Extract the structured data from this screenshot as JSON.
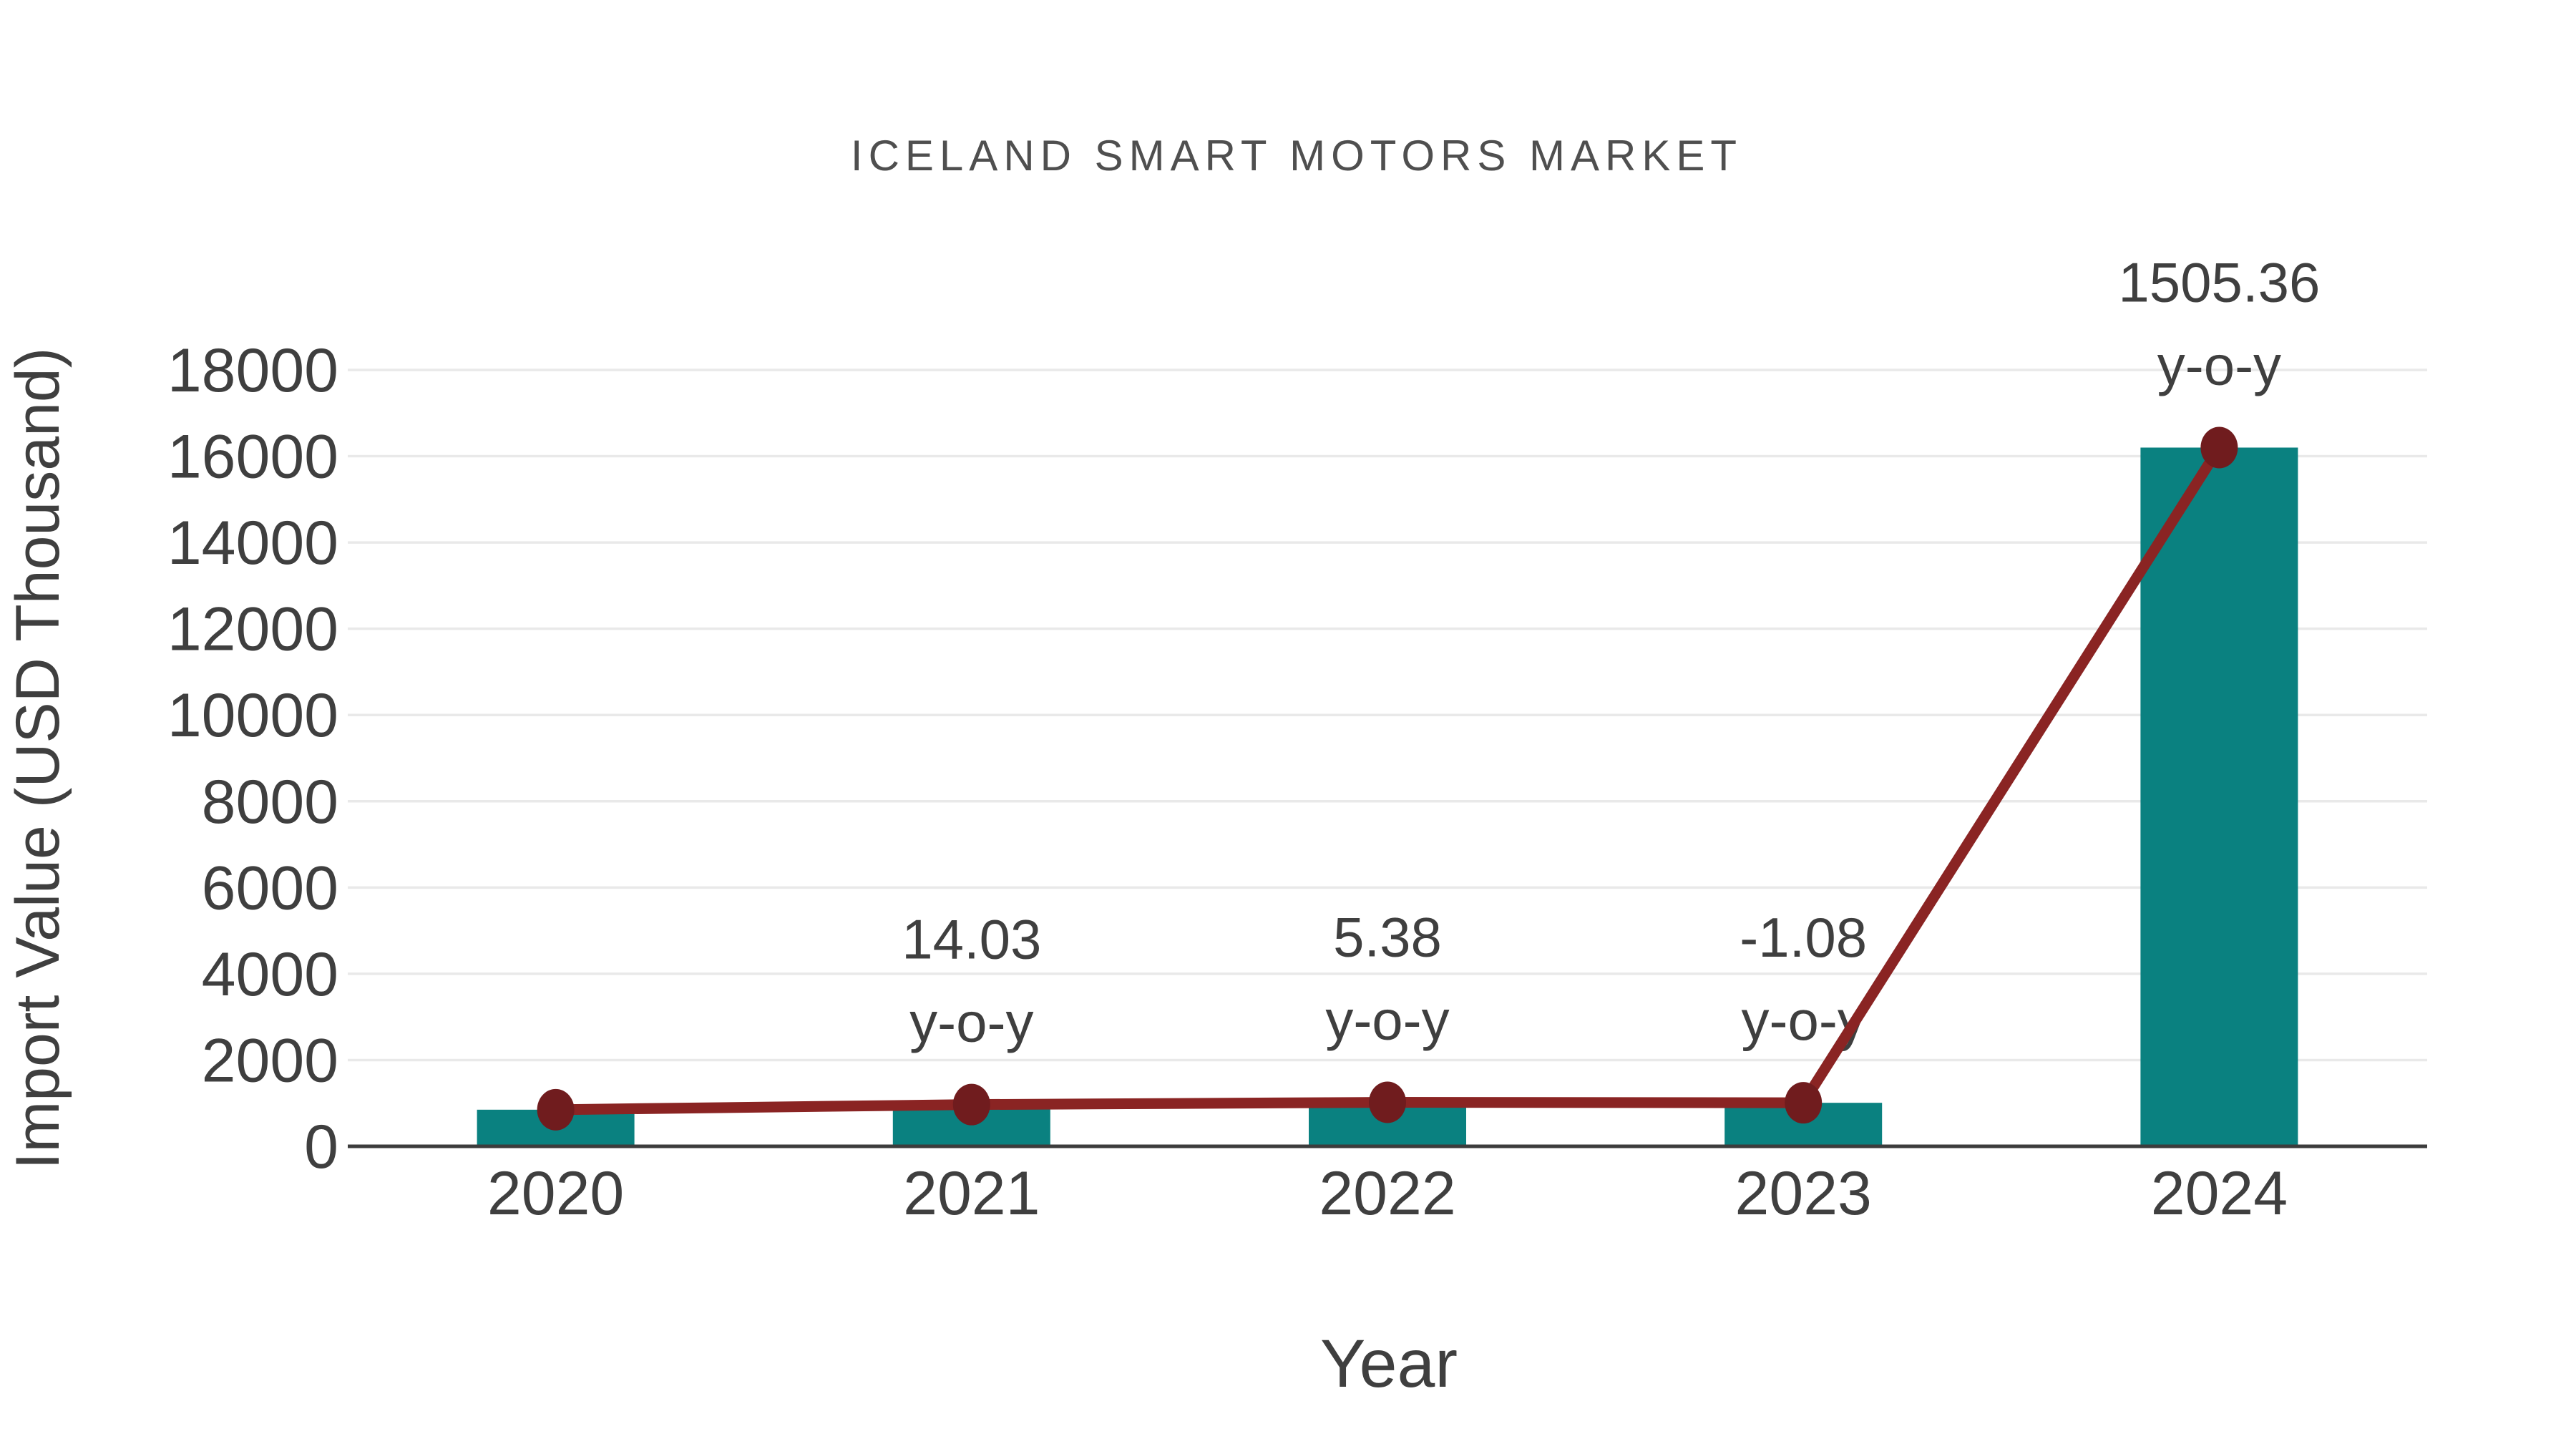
{
  "page": {
    "background": "#ffffff"
  },
  "chart_data": {
    "type": "bar",
    "subtype": "bar-with-line-overlay",
    "title": "ICELAND SMART MOTORS MARKET",
    "xlabel": "Year",
    "ylabel": "Import Value (USD Thousand)",
    "categories": [
      "2020",
      "2021",
      "2022",
      "2023",
      "2024"
    ],
    "series": [
      {
        "name": "Import Value (USD Thousand)",
        "type": "bar",
        "color": "#0a8180",
        "values": [
          849,
          968,
          1020,
          1009,
          16200
        ]
      },
      {
        "name": "Import Value trend",
        "type": "line",
        "color": "#8a2423",
        "marker_color": "#701c1e",
        "values": [
          849,
          968,
          1020,
          1009,
          16200
        ]
      }
    ],
    "annotations": [
      {
        "category": "2021",
        "value_label": "14.03",
        "unit_label": "y-o-y"
      },
      {
        "category": "2022",
        "value_label": "5.38",
        "unit_label": "y-o-y"
      },
      {
        "category": "2023",
        "value_label": "-1.08",
        "unit_label": "y-o-y"
      },
      {
        "category": "2024",
        "value_label": "1505.36",
        "unit_label": "y-o-y"
      }
    ],
    "ylim": [
      0,
      18000
    ],
    "yticks": [
      0,
      2000,
      4000,
      6000,
      8000,
      10000,
      12000,
      14000,
      16000,
      18000
    ],
    "grid": true,
    "legend": "none",
    "colors": {
      "grid": "#e9e9e9",
      "axis_line": "#3c3c3c",
      "text": "#3f3f3f",
      "title_text": "#4f4f4f"
    }
  }
}
